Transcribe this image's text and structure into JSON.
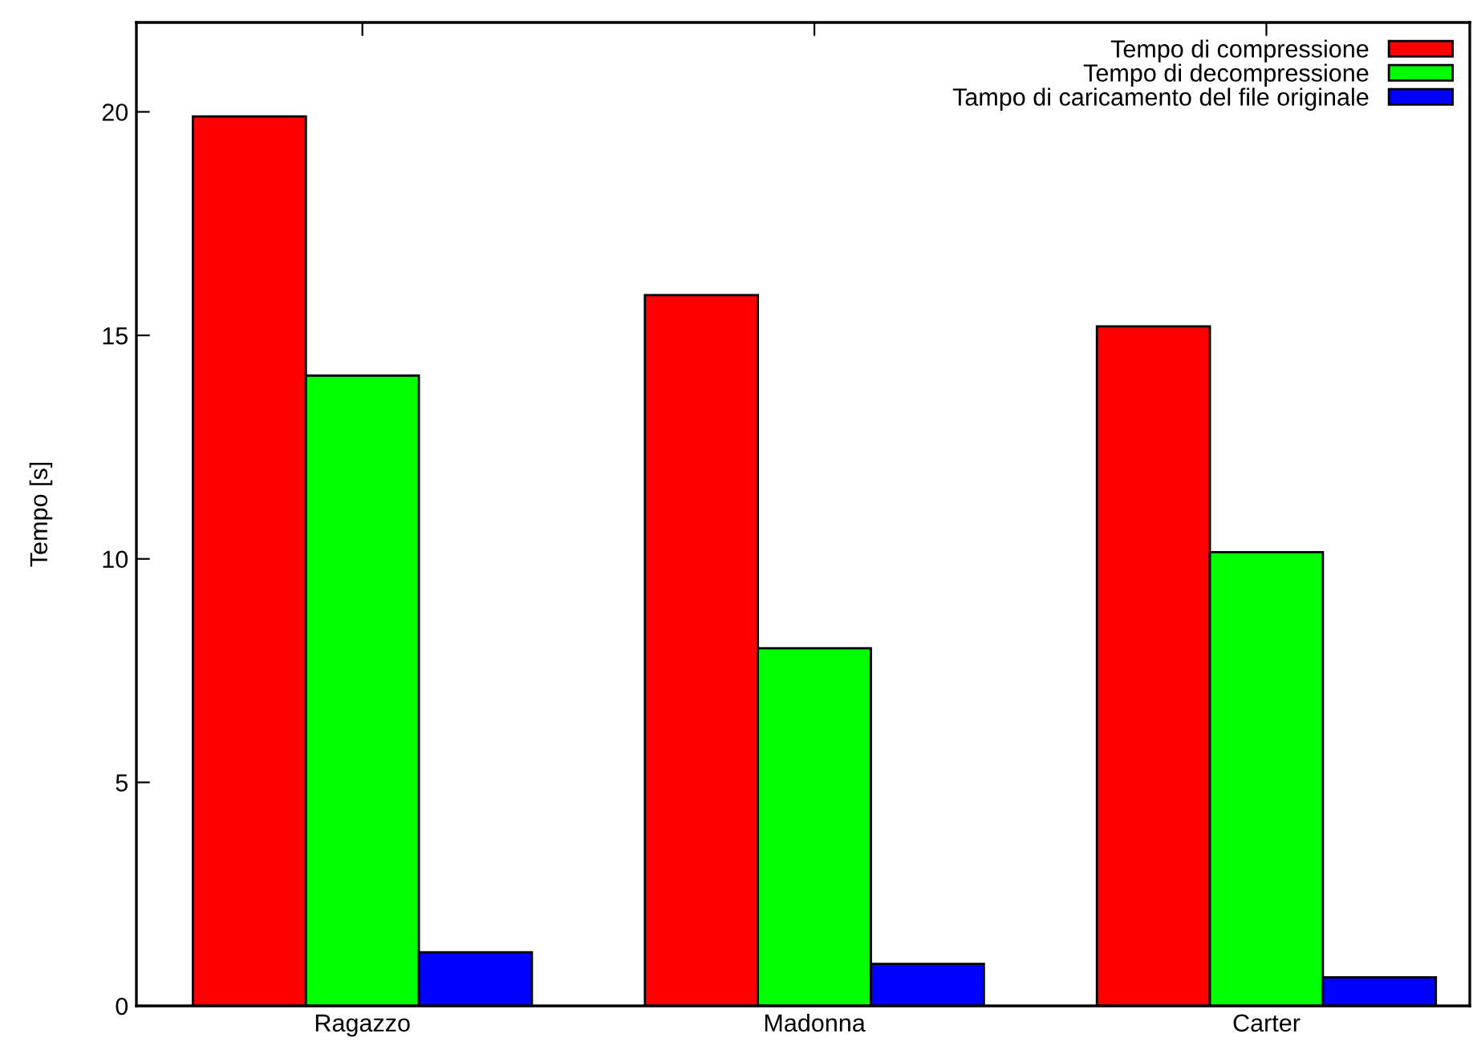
{
  "chart_data": {
    "type": "bar",
    "ylabel": "Tempo [s]",
    "categories": [
      "Ragazzo",
      "Madonna",
      "Carter"
    ],
    "series": [
      {
        "name": "Tempo di compressione",
        "color": "#ff0000",
        "values": [
          19.9,
          15.9,
          15.2
        ]
      },
      {
        "name": "Tempo di decompressione",
        "color": "#00ff00",
        "values": [
          14.1,
          8.0,
          10.15
        ]
      },
      {
        "name": "Tampo di caricamento del file originale",
        "color": "#0000ff",
        "values": [
          1.2,
          0.94,
          0.64
        ]
      }
    ],
    "ylim": [
      0,
      22
    ],
    "yticks": [
      0,
      5,
      10,
      15,
      20
    ],
    "grid": false,
    "legend": "top right"
  }
}
